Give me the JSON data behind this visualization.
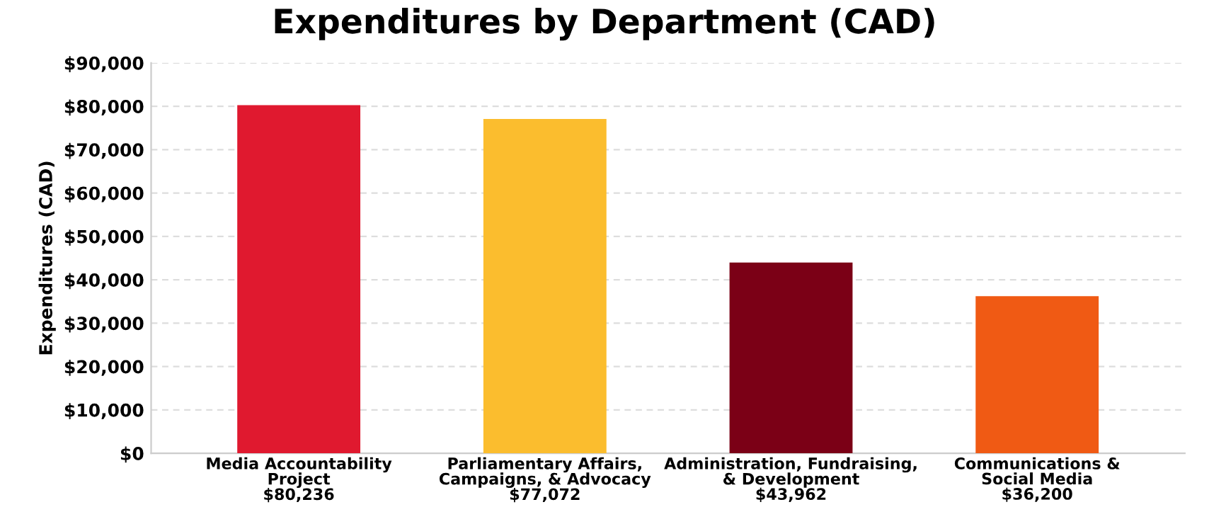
{
  "chart_data": {
    "type": "bar",
    "title": "Expenditures by Department (CAD)",
    "ylabel": "Expenditures (CAD)",
    "categories": [
      "Media Accountability\nProject",
      "Parliamentary Affairs,\nCampaigns, & Advocacy",
      "Administration, Fundraising,\n& Development",
      "Communications &\nSocial Media"
    ],
    "values": [
      80236,
      77072,
      43962,
      36200
    ],
    "value_labels": [
      "$80,236",
      "$77,072",
      "$43,962",
      "$36,200"
    ],
    "colors": [
      "#e0192f",
      "#fbbd2e",
      "#7b0016",
      "#f05a14"
    ],
    "ylim": [
      0,
      90000
    ],
    "yticks": [
      {
        "value": 0,
        "label": "$0"
      },
      {
        "value": 10000,
        "label": "$10,000"
      },
      {
        "value": 20000,
        "label": "$20,000"
      },
      {
        "value": 30000,
        "label": "$30,000"
      },
      {
        "value": 40000,
        "label": "$40,000"
      },
      {
        "value": 50000,
        "label": "$50,000"
      },
      {
        "value": 60000,
        "label": "$60,000"
      },
      {
        "value": 70000,
        "label": "$70,000"
      },
      {
        "value": 80000,
        "label": "$80,000"
      },
      {
        "value": 90000,
        "label": "$90,000"
      }
    ],
    "grid": "y",
    "legend": false
  }
}
